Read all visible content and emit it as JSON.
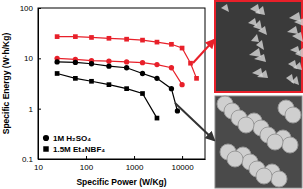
{
  "chart_data": {
    "type": "line",
    "log": true,
    "x_label": "Specific Power (W/Kg)",
    "y_label": "Specific Energy (W·h/Kg)",
    "xlim": [
      10,
      30000
    ],
    "xticks": [
      10,
      100,
      1000,
      10000
    ],
    "ylim": [
      0.1,
      100
    ],
    "yticks": [
      0.1,
      1,
      10,
      100
    ],
    "legend": "lower left",
    "series": [
      {
        "color": "#e8202a",
        "marker": "square",
        "x": [
          25,
          60,
          130,
          300,
          700,
          1500,
          3000,
          6000,
          10000,
          15000,
          20000
        ],
        "values": [
          27,
          27,
          26,
          25,
          24,
          23,
          21,
          19,
          16,
          8,
          4
        ]
      },
      {
        "color": "#e8202a",
        "marker": "circle",
        "x": [
          25,
          60,
          130,
          300,
          700,
          1500,
          3000,
          6000,
          10000
        ],
        "values": [
          10,
          9.5,
          9,
          8.8,
          8.5,
          8.2,
          7.5,
          6.5,
          3
        ]
      },
      {
        "name": "1M H₂SO₄",
        "color": "#000000",
        "marker": "circle",
        "x": [
          25,
          60,
          130,
          300,
          700,
          1500,
          3000,
          6000,
          8000
        ],
        "values": [
          8.5,
          8.3,
          7.8,
          7,
          6.5,
          5,
          4,
          2.5,
          0.9
        ]
      },
      {
        "name": "1.5M Et₄NBF₄",
        "color": "#000000",
        "marker": "square",
        "x": [
          25,
          60,
          130,
          300,
          700,
          1500,
          3000
        ],
        "values": [
          5,
          4,
          3.5,
          3,
          2.5,
          2,
          0.65
        ]
      }
    ]
  }
}
